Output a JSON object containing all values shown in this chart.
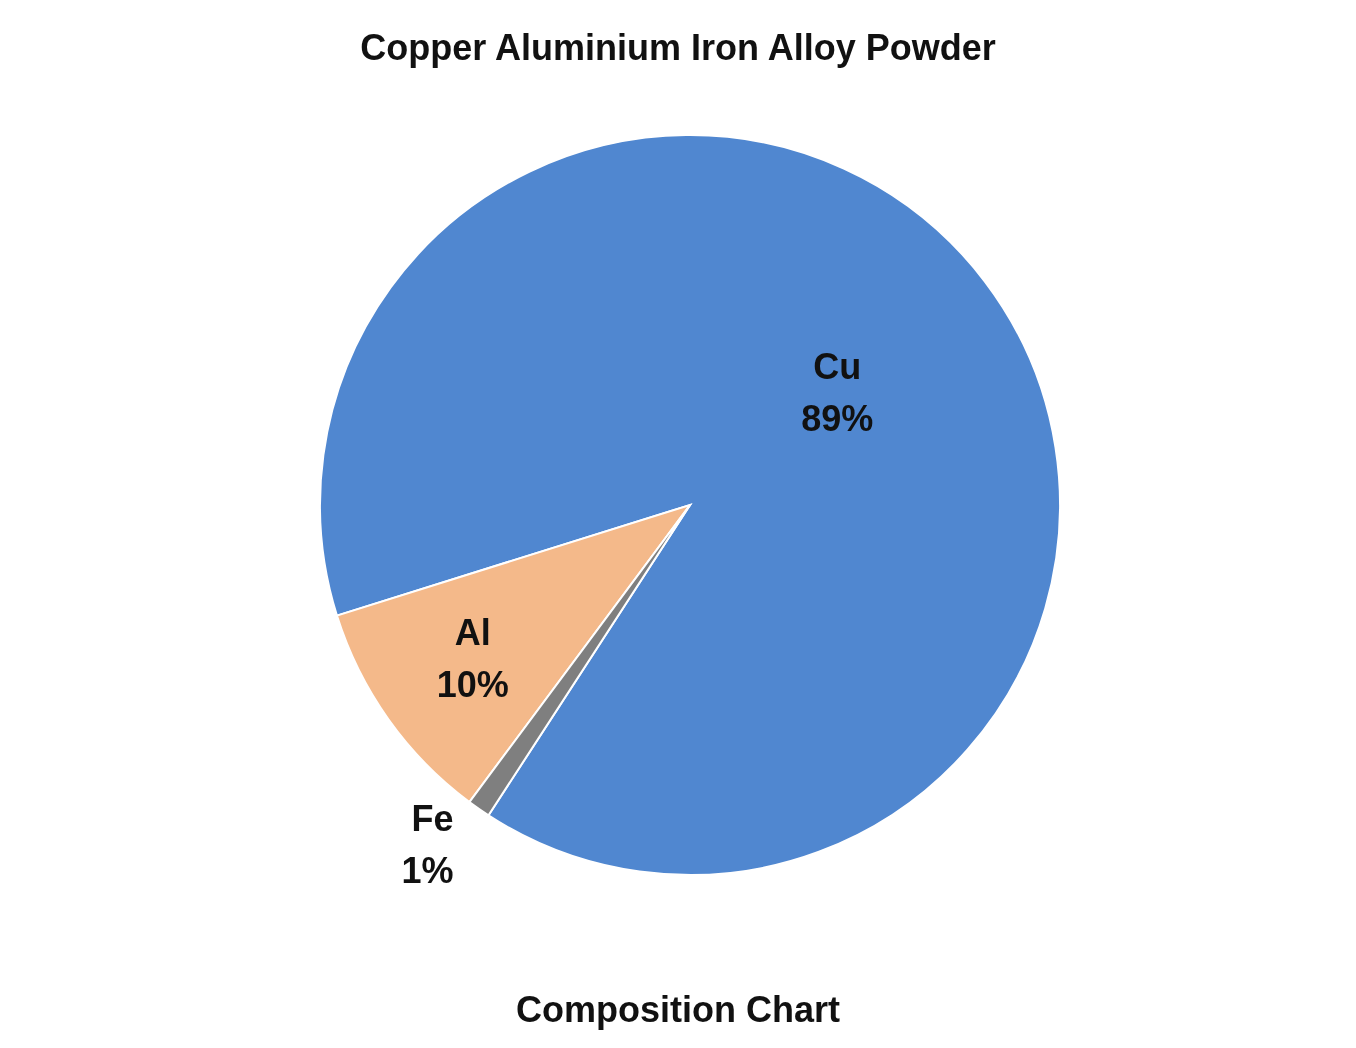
{
  "chart_data": {
    "type": "pie",
    "title": "Copper Aluminium Iron Alloy Powder",
    "categories": [
      "Cu",
      "Al",
      "Fe"
    ],
    "values": [
      89,
      10,
      1
    ],
    "colors": [
      "#5087d0",
      "#f4b98a",
      "#7f7f7f"
    ],
    "value_labels": [
      "89%",
      "10%",
      "1%"
    ],
    "annotations": [
      "Composition Chart"
    ]
  }
}
